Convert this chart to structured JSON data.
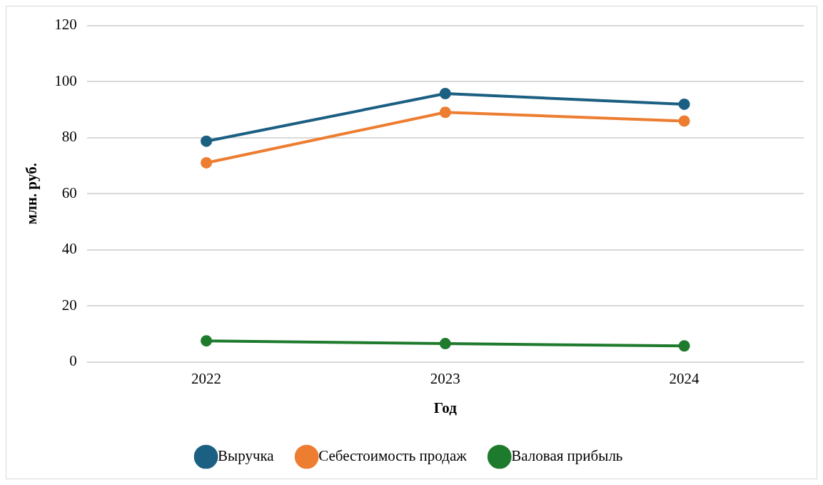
{
  "chart_data": {
    "type": "line",
    "xlabel": "Год",
    "ylabel": "млн. руб.",
    "categories": [
      "2022",
      "2023",
      "2024"
    ],
    "series": [
      {
        "name": "Выручка",
        "color": "#1b5f82",
        "values": [
          78.7,
          95.7,
          91.9
        ]
      },
      {
        "name": "Себестоимость продаж",
        "color": "#ed7d31",
        "values": [
          71.0,
          89.0,
          85.9
        ]
      },
      {
        "name": "Валовая прибыль",
        "color": "#1e7a2c",
        "values": [
          7.5,
          6.5,
          5.7
        ]
      }
    ],
    "ylim": [
      0,
      120
    ],
    "yticks": [
      0,
      20,
      40,
      60,
      80,
      100,
      120
    ],
    "grid": "y",
    "legend": "bottom",
    "marker": "circle",
    "line_style": "solid"
  }
}
